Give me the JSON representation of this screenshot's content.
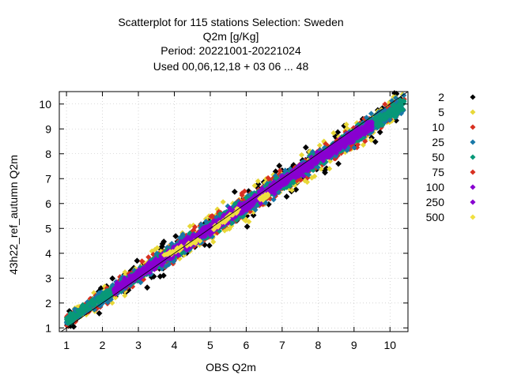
{
  "chart_data": {
    "type": "scatter",
    "title_lines": [
      "Scatterplot for  115 stations Selection: Sweden",
      "Q2m [g/Kg]",
      "Period: 20221001-20221024",
      "Used  00,06,12,18  + 03 06 ... 48"
    ],
    "xlabel": "OBS Q2m",
    "ylabel": "43h22_ref_autumn Q2m",
    "xlim": [
      0.8,
      10.5
    ],
    "ylim": [
      0.85,
      10.5
    ],
    "xticks": [
      1,
      2,
      3,
      4,
      5,
      6,
      7,
      8,
      9,
      10
    ],
    "yticks": [
      1,
      2,
      3,
      4,
      5,
      6,
      7,
      8,
      9,
      10
    ],
    "grid": true,
    "diagonal": true,
    "legend_position": "right",
    "legend": [
      {
        "label": "2",
        "color": "#000000"
      },
      {
        "label": "5",
        "color": "#e8d838"
      },
      {
        "label": "10",
        "color": "#d83020"
      },
      {
        "label": "25",
        "color": "#1878a8"
      },
      {
        "label": "50",
        "color": "#089878"
      },
      {
        "label": "75",
        "color": "#d83020"
      },
      {
        "label": "100",
        "color": "#8800d0"
      },
      {
        "label": "250",
        "color": "#8800d0"
      },
      {
        "label": "500",
        "color": "#f0e040"
      }
    ],
    "density_bands": [
      {
        "label": "2",
        "color": "#000000",
        "width": 1.05
      },
      {
        "label": "5",
        "color": "#e8d838",
        "width": 0.85
      },
      {
        "label": "10",
        "color": "#d83020",
        "width": 0.7
      },
      {
        "label": "25",
        "color": "#1878a8",
        "width": 0.55
      },
      {
        "label": "50",
        "color": "#089878",
        "width": 0.42
      },
      {
        "label": "100",
        "color": "#8800d0",
        "width": 0.32
      }
    ],
    "dense_core": {
      "x_range": [
        2.3,
        9.5
      ],
      "slope": 0.93,
      "intercept": 0.35
    },
    "yellow_streak": [
      [
        3.7,
        3.9
      ],
      [
        4.7,
        4.55
      ],
      [
        5.0,
        4.9
      ],
      [
        5.8,
        5.75
      ],
      [
        6.4,
        6.15
      ],
      [
        6.6,
        6.35
      ]
    ]
  }
}
